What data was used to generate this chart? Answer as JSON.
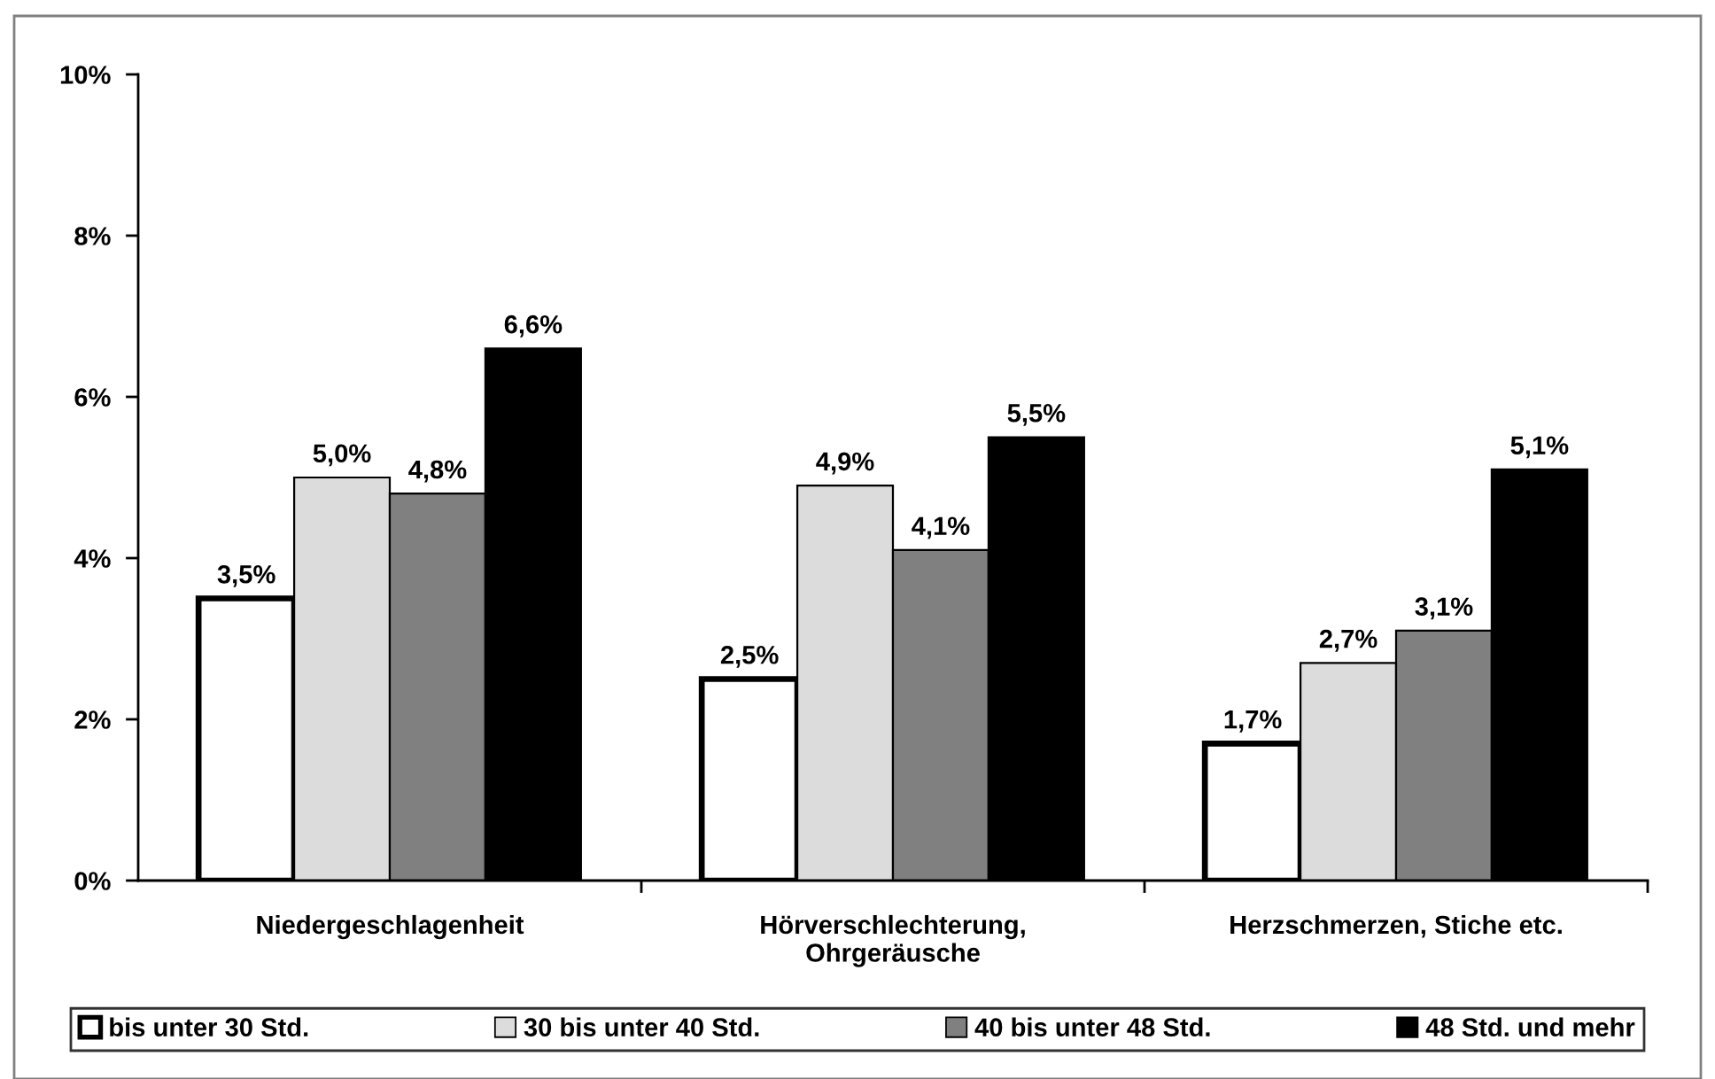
{
  "chart_data": {
    "type": "bar",
    "categories": [
      "Niedergeschlagenheit",
      "Hörverschlechterung,\nOhrgeräusche",
      "Herzschmerzen, Stiche etc."
    ],
    "series": [
      {
        "name": "bis unter 30 Std.",
        "color": "#ffffff",
        "values": [
          3.5,
          2.5,
          1.7
        ],
        "value_labels": [
          "3,5%",
          "2,5%",
          "1,7%"
        ]
      },
      {
        "name": "30 bis unter 40 Std.",
        "color": "#dcdcdc",
        "values": [
          5.0,
          4.9,
          2.7
        ],
        "value_labels": [
          "5,0%",
          "4,9%",
          "2,7%"
        ]
      },
      {
        "name": "40 bis unter 48 Std.",
        "color": "#808080",
        "values": [
          4.8,
          4.1,
          3.1
        ],
        "value_labels": [
          "4,8%",
          "4,1%",
          "3,1%"
        ]
      },
      {
        "name": "48 Std. und mehr",
        "color": "#000000",
        "values": [
          6.6,
          5.5,
          5.1
        ],
        "value_labels": [
          "6,6%",
          "5,5%",
          "5,1%"
        ]
      }
    ],
    "ylim": [
      0,
      10
    ],
    "yticks": [
      {
        "value": 0,
        "label": "0%"
      },
      {
        "value": 2,
        "label": "2%"
      },
      {
        "value": 4,
        "label": "4%"
      },
      {
        "value": 6,
        "label": "6%"
      },
      {
        "value": 8,
        "label": "8%"
      },
      {
        "value": 10,
        "label": "10%"
      }
    ],
    "legend": "bottom"
  }
}
